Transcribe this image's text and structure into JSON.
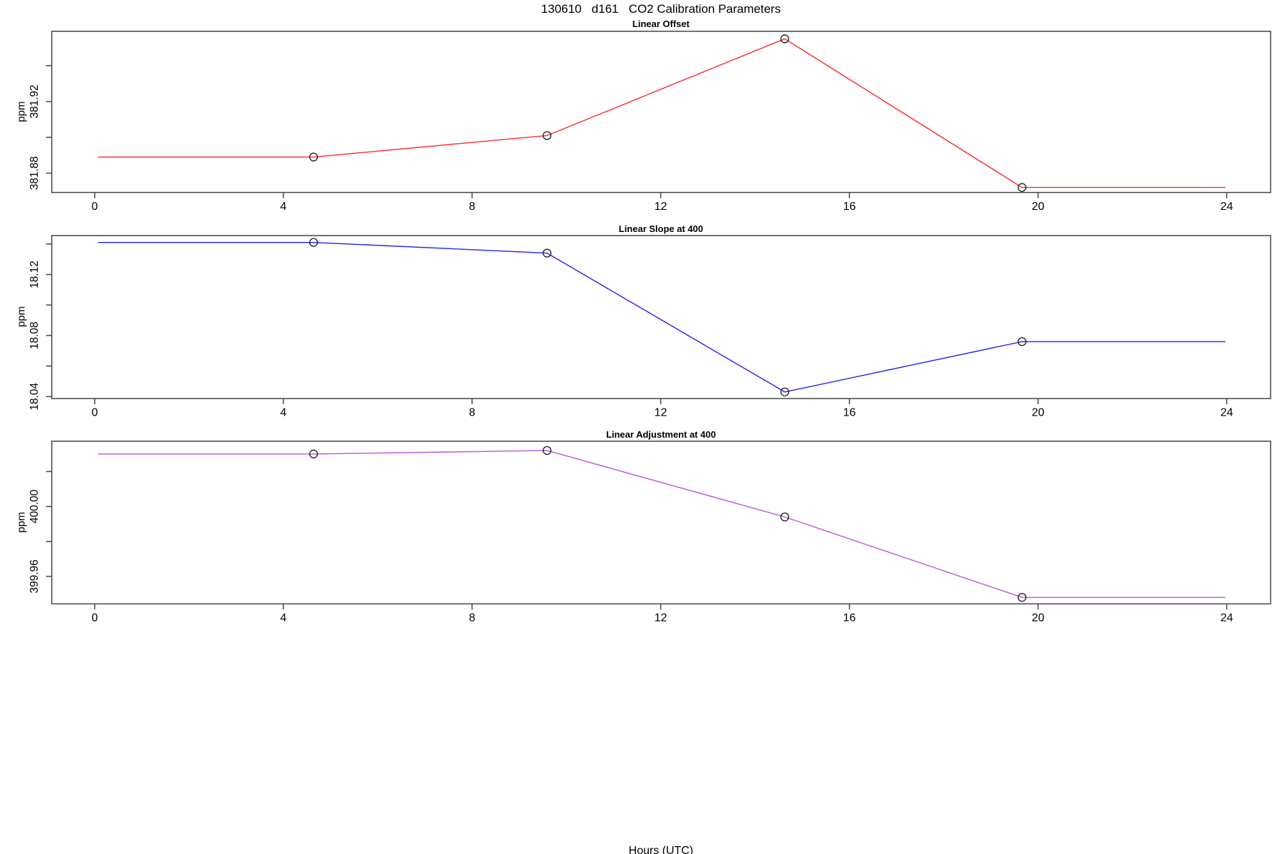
{
  "page": {
    "main_title": "130610   d161   CO2 Calibration Parameters",
    "xlabel": "Hours (UTC)"
  },
  "chart_data": [
    {
      "type": "line",
      "title": "Linear Offset",
      "ylabel": "ppm",
      "line_color": "#ff2a2a",
      "x": [
        0.07,
        4.64,
        9.59,
        14.63,
        19.66,
        23.97
      ],
      "y": [
        381.889,
        381.889,
        381.901,
        381.955,
        381.872,
        381.872
      ],
      "markers": [
        1,
        2,
        3,
        4
      ],
      "xlim": [
        -0.91,
        24.93
      ],
      "ylim": [
        381.8692,
        381.9592
      ],
      "xticks": [
        {
          "v": 0,
          "label": "0"
        },
        {
          "v": 4,
          "label": "4"
        },
        {
          "v": 8,
          "label": "8"
        },
        {
          "v": 12,
          "label": "12"
        },
        {
          "v": 16,
          "label": "16"
        },
        {
          "v": 20,
          "label": "20"
        },
        {
          "v": 24,
          "label": "24"
        }
      ],
      "yticks": [
        {
          "v": 381.88,
          "label": "381.88"
        },
        {
          "v": 381.9,
          "label": ""
        },
        {
          "v": 381.92,
          "label": "381.92"
        },
        {
          "v": 381.94,
          "label": ""
        }
      ],
      "grid": false,
      "legend": null
    },
    {
      "type": "line",
      "title": "Linear Slope at 400",
      "ylabel": "ppm",
      "line_color": "#2222ee",
      "x": [
        0.07,
        4.64,
        9.59,
        14.63,
        19.66,
        23.97
      ],
      "y": [
        18.141,
        18.141,
        18.134,
        18.043,
        18.076,
        18.076
      ],
      "markers": [
        1,
        2,
        3,
        4
      ],
      "xlim": [
        -0.91,
        24.93
      ],
      "ylim": [
        18.0387,
        18.1455
      ],
      "xticks": [
        {
          "v": 0,
          "label": "0"
        },
        {
          "v": 4,
          "label": "4"
        },
        {
          "v": 8,
          "label": "8"
        },
        {
          "v": 12,
          "label": "12"
        },
        {
          "v": 16,
          "label": "16"
        },
        {
          "v": 20,
          "label": "20"
        },
        {
          "v": 24,
          "label": "24"
        }
      ],
      "yticks": [
        {
          "v": 18.04,
          "label": "18.04"
        },
        {
          "v": 18.06,
          "label": ""
        },
        {
          "v": 18.08,
          "label": "18.08"
        },
        {
          "v": 18.1,
          "label": ""
        },
        {
          "v": 18.12,
          "label": "18.12"
        },
        {
          "v": 18.14,
          "label": ""
        }
      ],
      "grid": false,
      "legend": null
    },
    {
      "type": "line",
      "title": "Linear Adjustment at 400",
      "ylabel": "ppm",
      "line_color": "#bb55dd",
      "x": [
        0.07,
        4.64,
        9.59,
        14.63,
        19.66,
        23.97
      ],
      "y": [
        400.03,
        400.03,
        400.032,
        399.994,
        399.948,
        399.948
      ],
      "markers": [
        1,
        2,
        3,
        4
      ],
      "xlim": [
        -0.91,
        24.93
      ],
      "ylim": [
        399.9443,
        400.0373
      ],
      "xticks": [
        {
          "v": 0,
          "label": "0"
        },
        {
          "v": 4,
          "label": "4"
        },
        {
          "v": 8,
          "label": "8"
        },
        {
          "v": 12,
          "label": "12"
        },
        {
          "v": 16,
          "label": "16"
        },
        {
          "v": 20,
          "label": "20"
        },
        {
          "v": 24,
          "label": "24"
        }
      ],
      "yticks": [
        {
          "v": 399.96,
          "label": "399.96"
        },
        {
          "v": 399.98,
          "label": ""
        },
        {
          "v": 400.0,
          "label": "400.00"
        },
        {
          "v": 400.02,
          "label": ""
        }
      ],
      "grid": false,
      "legend": null
    }
  ]
}
